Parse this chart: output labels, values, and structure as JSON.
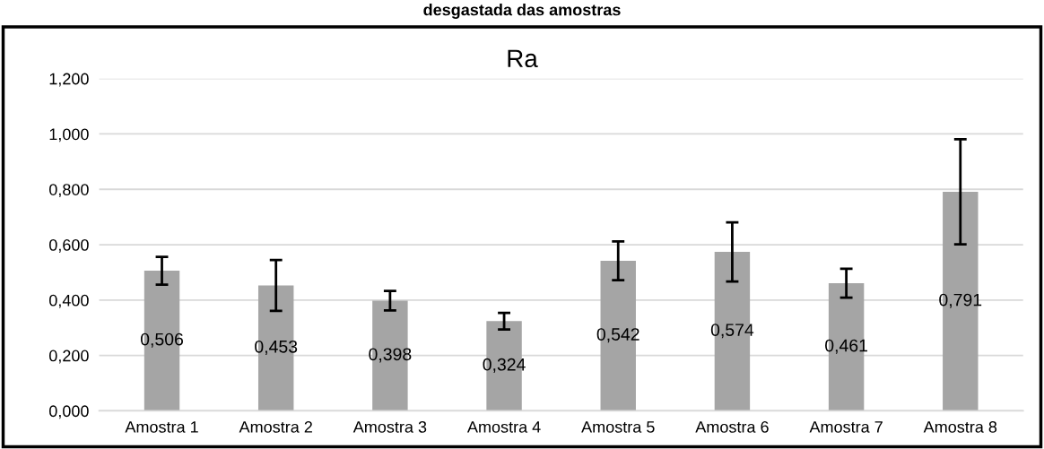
{
  "chart_data": {
    "type": "bar",
    "title": "Ra",
    "annotations": [
      "desgastada das amostras"
    ],
    "categories": [
      "Amostra 1",
      "Amostra 2",
      "Amostra 3",
      "Amostra 4",
      "Amostra 5",
      "Amostra 6",
      "Amostra 7",
      "Amostra 8"
    ],
    "values": [
      0.506,
      0.453,
      0.398,
      0.324,
      0.542,
      0.574,
      0.461,
      0.791
    ],
    "errors": [
      0.05,
      0.092,
      0.035,
      0.03,
      0.07,
      0.107,
      0.052,
      0.19
    ],
    "value_labels": [
      "0,506",
      "0,453",
      "0,398",
      "0,324",
      "0,542",
      "0,574",
      "0,461",
      "0,791"
    ],
    "color": "#a5a5a5",
    "ylim": [
      0,
      1.2
    ],
    "yticks": [
      {
        "value": 0,
        "label": "0,000"
      },
      {
        "value": 0.2,
        "label": "0,200"
      },
      {
        "value": 0.4,
        "label": "0,400"
      },
      {
        "value": 0.6,
        "label": "0,600"
      },
      {
        "value": 0.8,
        "label": "0,800"
      },
      {
        "value": 1.0,
        "label": "1,000"
      },
      {
        "value": 1.2,
        "label": "1,200"
      }
    ],
    "grid": "y"
  }
}
